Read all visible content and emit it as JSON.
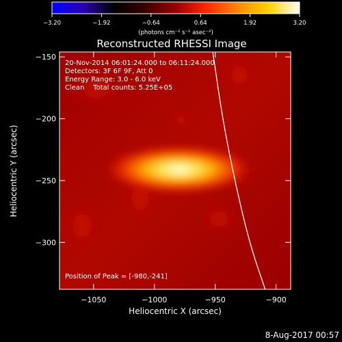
{
  "chart_data": {
    "type": "heatmap",
    "title": "Reconstructed RHESSI Image",
    "xlabel": "Heliocentric X (arcsec)",
    "ylabel": "Heliocentric Y (arcsec)",
    "xlim": [
      -1078,
      -888
    ],
    "ylim": [
      -338,
      -146
    ],
    "x_ticks": [
      {
        "value": -1050,
        "label": "−1050"
      },
      {
        "value": -1000,
        "label": "−1000"
      },
      {
        "value": -950,
        "label": "−950"
      },
      {
        "value": -900,
        "label": "−900"
      }
    ],
    "y_ticks": [
      {
        "value": -150,
        "label": "−150"
      },
      {
        "value": -200,
        "label": "−200"
      },
      {
        "value": -250,
        "label": "−250"
      },
      {
        "value": -300,
        "label": "−300"
      }
    ],
    "colorbar": {
      "min": -3.2,
      "max": 3.2,
      "ticks": [
        {
          "value": -3.2,
          "label": "−3.20"
        },
        {
          "value": -1.92,
          "label": "−1.92"
        },
        {
          "value": -0.64,
          "label": "−0.64"
        },
        {
          "value": 0.64,
          "label": "0.64"
        },
        {
          "value": 1.92,
          "label": "1.92"
        },
        {
          "value": 3.2,
          "label": "3.20"
        }
      ],
      "unit_label": "(photons cm⁻² s⁻¹ asec⁻²)",
      "colors": [
        "#0000ff",
        "#2a00b0",
        "#000000",
        "#3a0000",
        "#9a0000",
        "#ff2a00",
        "#ff8a00",
        "#ffd200",
        "#ffffff"
      ]
    },
    "source": {
      "x": -980,
      "y": -241,
      "peak": 3.2,
      "width_x": 30,
      "width_y": 9
    },
    "background_level": 0.64,
    "limb_curve": [
      [
        -952,
        -146
      ],
      [
        -944,
        -200
      ],
      [
        -934,
        -250
      ],
      [
        -922,
        -300
      ],
      [
        -909,
        -338
      ]
    ],
    "annotations": {
      "time_range": "20-Nov-2014 06:01:24.000 to 06:11:24.000",
      "detectors": "Detectors: 3F 6F 9F, Att 0",
      "energy": "Energy Range: 3.0 - 6.0 keV",
      "clean": "Clean    Total counts: 5.25E+05",
      "peak_position": "Position of Peak = [-980,-241]"
    }
  },
  "footer": {
    "date": "8-Aug-2017 00:57"
  }
}
